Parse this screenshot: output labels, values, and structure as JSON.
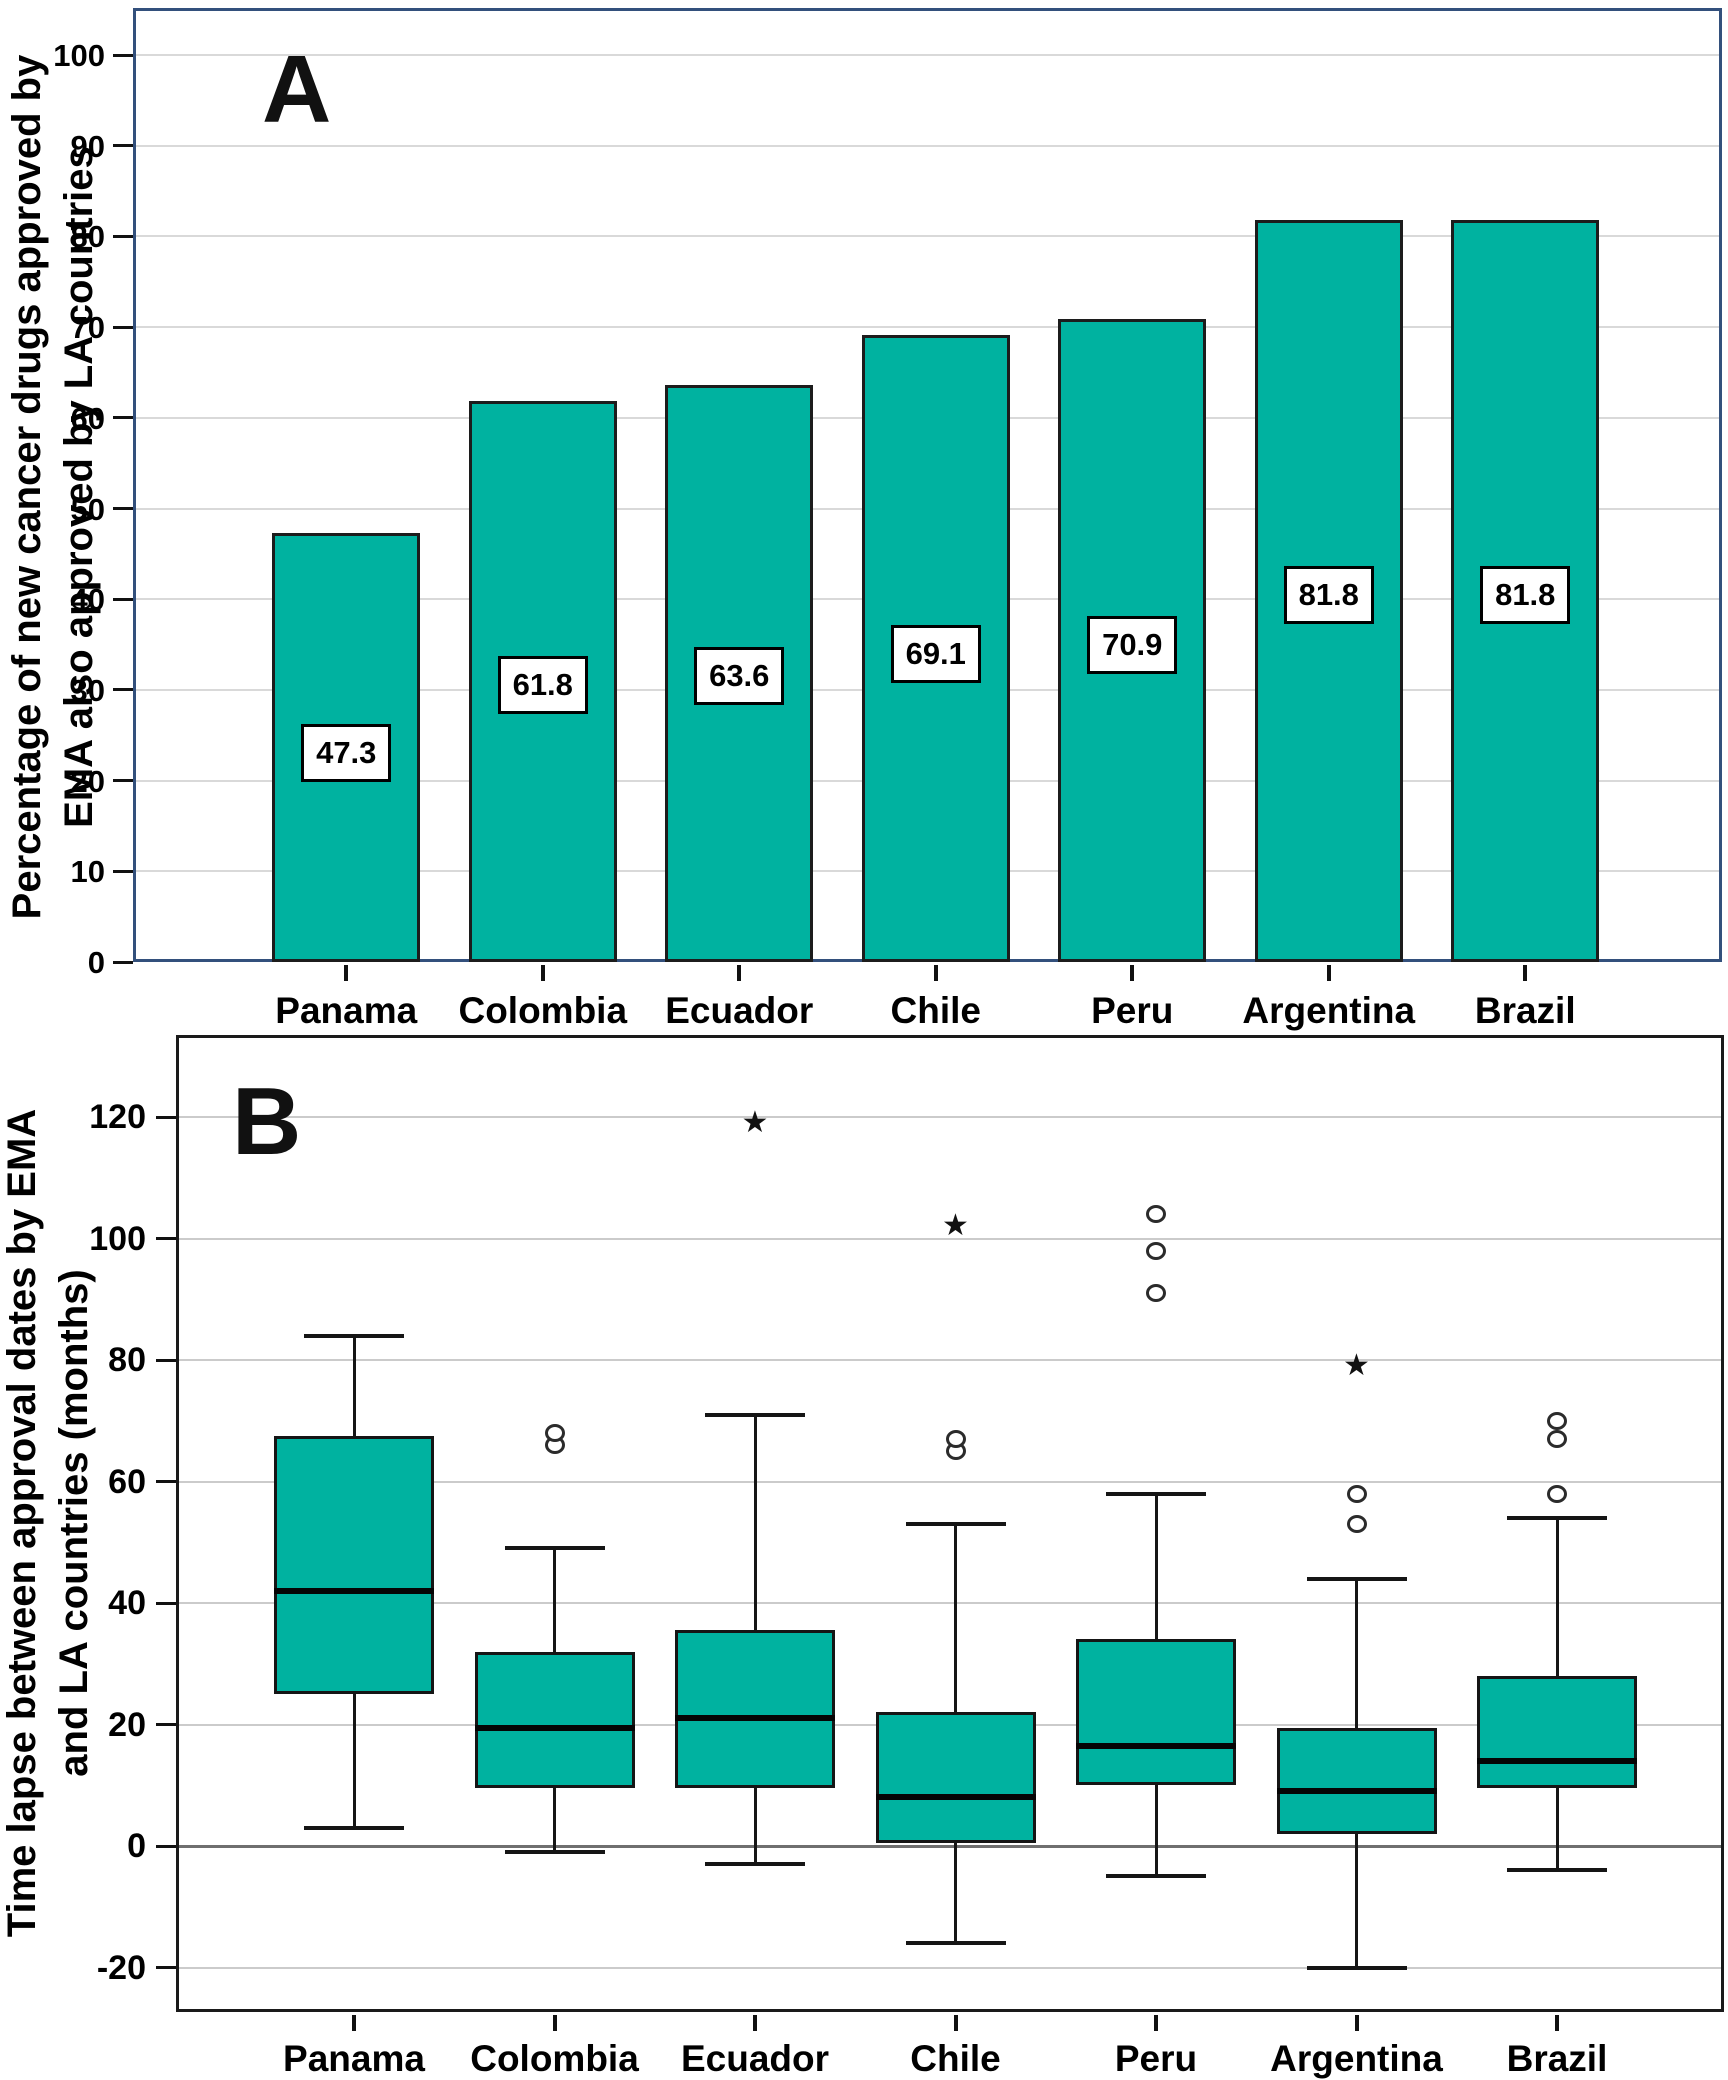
{
  "figure": {
    "panels": {
      "a": {
        "letter": "A",
        "y_axis_title_line1": "Percentage of new cancer drugs approved by",
        "y_axis_title_line2": "EMA also approved by LA countries"
      },
      "b": {
        "letter": "B",
        "y_axis_title_line1": "Time lapse between approval dates by EMA",
        "y_axis_title_line2": "and LA countries (months)"
      }
    }
  },
  "colors": {
    "teal_fill": "#00b2a0",
    "panel_a_border": "#33507c",
    "panel_b_border": "#1a1a1a",
    "grid_light_a": "#d9d9d9",
    "grid_light_b": "#cbcbcb",
    "zero_line": "#6f6f6f",
    "marker_stroke": "#2b2b2b",
    "text": "#000000"
  },
  "chart_data": [
    {
      "type": "bar",
      "panel": "A",
      "title": "A",
      "categories": [
        "Panama",
        "Colombia",
        "Ecuador",
        "Chile",
        "Peru",
        "Argentina",
        "Brazil"
      ],
      "values": [
        47.3,
        61.8,
        63.6,
        69.1,
        70.9,
        81.8,
        81.8
      ],
      "value_labels": [
        "47.3",
        "61.8",
        "63.6",
        "69.1",
        "70.9",
        "81.8",
        "81.8"
      ],
      "value_label_center_positions": [
        23,
        30.5,
        31.5,
        34,
        35,
        40.5,
        40.5
      ],
      "xlabel": "",
      "ylabel": "Percentage of new cancer drugs approved by EMA also approved by LA countries",
      "ylim": [
        0,
        105.2
      ],
      "yticks": [
        0,
        10,
        20,
        30,
        40,
        50,
        60,
        70,
        80,
        90,
        100
      ],
      "grid": true,
      "legend": "none",
      "bar_color": "#00b2a0"
    },
    {
      "type": "box",
      "panel": "B",
      "title": "B",
      "categories": [
        "Panama",
        "Colombia",
        "Ecuador",
        "Chile",
        "Peru",
        "Argentina",
        "Brazil"
      ],
      "xlabel": "",
      "ylabel": "Time lapse between approval dates by EMA and LA countries (months)",
      "ylim": [
        -27.3,
        133.5
      ],
      "yticks": [
        -20,
        0,
        20,
        40,
        60,
        80,
        100,
        120
      ],
      "grid": true,
      "legend": "none",
      "box_color": "#00b2a0",
      "series": [
        {
          "name": "Panama",
          "whislo": 3,
          "q1": 25,
          "med": 42,
          "q3": 67.5,
          "whishi": 84,
          "outliers": [],
          "extremes": []
        },
        {
          "name": "Colombia",
          "whislo": -1,
          "q1": 9.5,
          "med": 19.5,
          "q3": 32,
          "whishi": 49,
          "outliers": [
            66,
            68
          ],
          "extremes": []
        },
        {
          "name": "Ecuador",
          "whislo": -3,
          "q1": 9.5,
          "med": 21,
          "q3": 35.5,
          "whishi": 71,
          "outliers": [],
          "extremes": [
            119
          ]
        },
        {
          "name": "Chile",
          "whislo": -16,
          "q1": 0.5,
          "med": 8,
          "q3": 22,
          "whishi": 53,
          "outliers": [
            65,
            67
          ],
          "extremes": [
            102
          ]
        },
        {
          "name": "Peru",
          "whislo": -5,
          "q1": 10,
          "med": 16.5,
          "q3": 34,
          "whishi": 58,
          "outliers": [
            91,
            98,
            104
          ],
          "extremes": []
        },
        {
          "name": "Argentina",
          "whislo": -20,
          "q1": 2,
          "med": 9,
          "q3": 19.5,
          "whishi": 44,
          "outliers": [
            53,
            58
          ],
          "extremes": [
            79
          ]
        },
        {
          "name": "Brazil",
          "whislo": -4,
          "q1": 9.5,
          "med": 14,
          "q3": 28,
          "whishi": 54,
          "outliers": [
            58,
            67,
            70
          ],
          "extremes": []
        }
      ]
    }
  ]
}
